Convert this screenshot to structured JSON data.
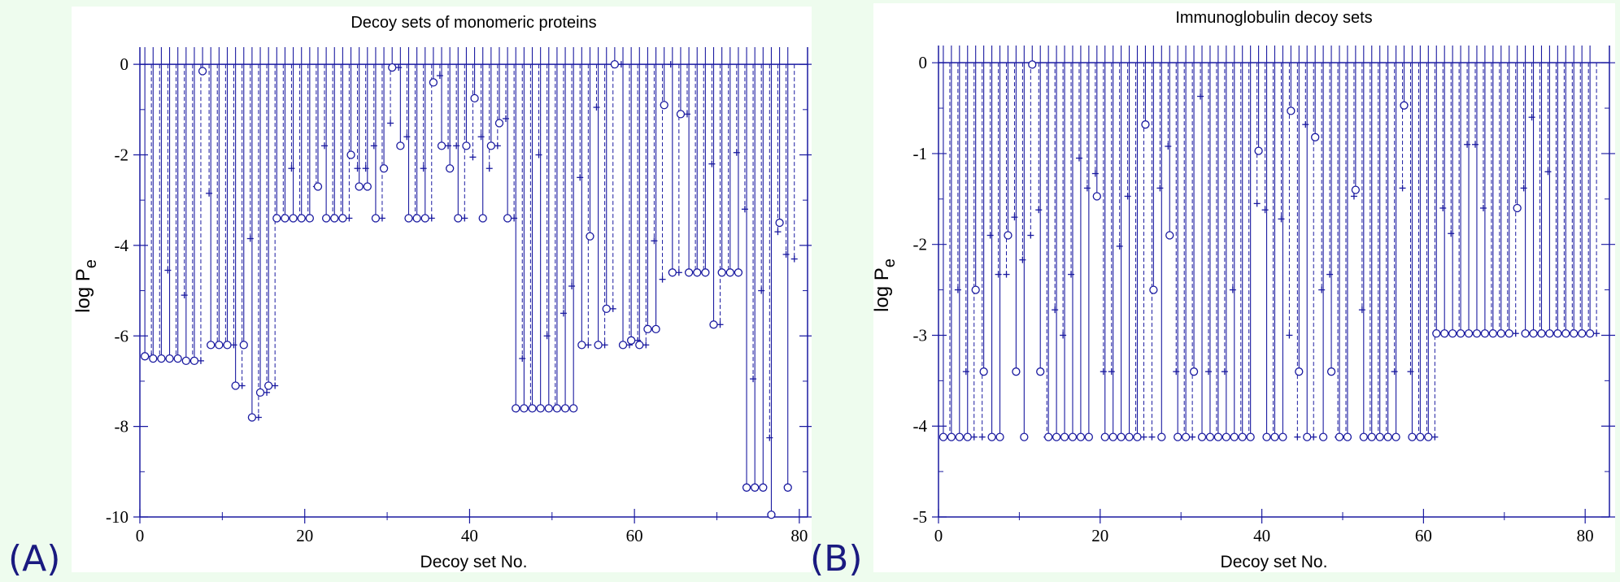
{
  "panels": {
    "a_label": "(A)",
    "b_label": "(B)"
  },
  "colors": {
    "plot": "#1a1aa0",
    "background": "#eefcee",
    "panel": "#ffffff"
  },
  "chart_data": [
    {
      "type": "scatter",
      "title": "Decoy sets of monomeric proteins",
      "xlabel": "Decoy set No.",
      "ylabel": "log P",
      "ylabel_sub": "e",
      "xlim": [
        0,
        81
      ],
      "ylim": [
        -10,
        0.2
      ],
      "xticks": [
        0,
        20,
        40,
        60,
        80
      ],
      "yticks": [
        0,
        -2,
        -4,
        -6,
        -8,
        -10
      ],
      "grid": false,
      "markers": {
        "circle": "o",
        "plus": "+"
      },
      "x": [
        1,
        2,
        3,
        4,
        5,
        6,
        7,
        8,
        9,
        10,
        11,
        12,
        13,
        14,
        15,
        16,
        17,
        18,
        19,
        20,
        21,
        22,
        23,
        24,
        25,
        26,
        27,
        28,
        29,
        30,
        31,
        32,
        33,
        34,
        35,
        36,
        37,
        38,
        39,
        40,
        41,
        42,
        43,
        44,
        45,
        46,
        47,
        48,
        49,
        50,
        51,
        52,
        53,
        54,
        55,
        56,
        57,
        58,
        59,
        60,
        61,
        62,
        63,
        64,
        65,
        66,
        67,
        68,
        69,
        70,
        71,
        72,
        73,
        74,
        75,
        76,
        77,
        78,
        79
      ],
      "series": [
        {
          "marker": "o",
          "values": [
            -6.45,
            -6.5,
            -6.5,
            -6.5,
            -6.5,
            -6.55,
            -6.55,
            -0.15,
            -6.2,
            -6.2,
            -6.2,
            -7.1,
            -6.2,
            -7.8,
            -7.25,
            -7.1,
            -3.4,
            -3.4,
            -3.4,
            -3.4,
            -3.4,
            -2.7,
            -3.4,
            -3.4,
            -3.4,
            -2.0,
            -2.7,
            -2.7,
            -3.4,
            -2.3,
            -0.07,
            -1.8,
            -3.4,
            -3.4,
            -3.4,
            -0.4,
            -1.8,
            -2.3,
            -3.4,
            -1.8,
            -0.75,
            -3.4,
            -1.8,
            -1.3,
            -3.4,
            -7.6,
            -7.6,
            -7.6,
            -7.6,
            -7.6,
            -7.6,
            -7.6,
            -7.6,
            -6.2,
            -3.8,
            -6.2,
            -5.4,
            -0.0,
            -6.2,
            -6.1,
            -6.2,
            -5.85,
            -5.85,
            -0.9,
            -4.6,
            -1.1,
            -4.6,
            -4.6,
            -4.6,
            -5.75,
            -4.6,
            -4.6,
            -4.6,
            -9.35,
            -9.35,
            -9.35,
            -9.95,
            -3.5,
            -9.35
          ]
        },
        {
          "marker": "+",
          "values": [
            -6.45,
            -6.5,
            -4.55,
            -6.5,
            -5.1,
            -6.55,
            -6.55,
            -2.85,
            -6.2,
            -6.2,
            -6.2,
            -7.1,
            -3.85,
            -7.8,
            -7.25,
            -7.1,
            -3.4,
            -2.3,
            -3.4,
            -3.4,
            -2.7,
            -1.8,
            -3.4,
            -3.4,
            -3.4,
            -2.3,
            -2.3,
            -1.8,
            -3.4,
            -1.3,
            -0.07,
            -1.6,
            -3.4,
            -2.3,
            -3.4,
            -0.25,
            -1.8,
            -1.8,
            -3.4,
            -2.05,
            -1.6,
            -2.3,
            -1.8,
            -1.2,
            -3.4,
            -6.5,
            -7.6,
            -2.0,
            -6.0,
            -7.6,
            -5.5,
            -4.9,
            -2.5,
            -6.2,
            -0.95,
            -6.2,
            -5.4,
            -0.0,
            -6.2,
            -6.1,
            -6.2,
            -3.9,
            -4.75,
            -0.0,
            -4.6,
            -1.1,
            -4.6,
            -4.6,
            -2.2,
            -5.75,
            -4.6,
            -1.95,
            -3.2,
            -6.95,
            -5.0,
            -8.25,
            -3.7,
            -4.2,
            -4.3
          ]
        }
      ]
    },
    {
      "type": "scatter",
      "title": "Immunoglobulin decoy sets",
      "xlabel": "Decoy set No.",
      "ylabel": "log P",
      "ylabel_sub": "e",
      "xlim": [
        0,
        83
      ],
      "ylim": [
        -5,
        0.1
      ],
      "xticks": [
        0,
        20,
        40,
        60,
        80
      ],
      "yticks": [
        0,
        -1,
        -2,
        -3,
        -4,
        -5
      ],
      "grid": false,
      "markers": {
        "circle": "o",
        "plus": "+"
      },
      "x": [
        1,
        2,
        3,
        4,
        5,
        6,
        7,
        8,
        9,
        10,
        11,
        12,
        13,
        14,
        15,
        16,
        17,
        18,
        19,
        20,
        21,
        22,
        23,
        24,
        25,
        26,
        27,
        28,
        29,
        30,
        31,
        32,
        33,
        34,
        35,
        36,
        37,
        38,
        39,
        40,
        41,
        42,
        43,
        44,
        45,
        46,
        47,
        48,
        49,
        50,
        51,
        52,
        53,
        54,
        55,
        56,
        57,
        58,
        59,
        60,
        61,
        62,
        63,
        64,
        65,
        66,
        67,
        68,
        69,
        70,
        71,
        72,
        73,
        74,
        75,
        76,
        77,
        78,
        79,
        80,
        81
      ],
      "series": [
        {
          "marker": "o",
          "values": [
            -4.12,
            -4.12,
            -4.12,
            -4.12,
            -2.5,
            -3.4,
            -4.12,
            -4.12,
            -1.9,
            -3.4,
            -4.12,
            -0.02,
            -3.4,
            -4.12,
            -4.12,
            -4.12,
            -4.12,
            -4.12,
            -4.12,
            -1.47,
            -4.12,
            -4.12,
            -4.12,
            -4.12,
            -4.12,
            -0.68,
            -2.5,
            -4.12,
            -1.9,
            -4.12,
            -4.12,
            -3.4,
            -4.12,
            -4.12,
            -4.12,
            -4.12,
            -4.12,
            -4.12,
            -4.12,
            -0.97,
            -4.12,
            -4.12,
            -4.12,
            -0.53,
            -3.4,
            -4.12,
            -0.82,
            -4.12,
            -3.4,
            -4.12,
            -4.12,
            -1.4,
            -4.12,
            -4.12,
            -4.12,
            -4.12,
            -4.12,
            -0.47,
            -4.12,
            -4.12,
            -4.12,
            -2.98,
            -2.98,
            -2.98,
            -2.98,
            -2.98,
            -2.98,
            -2.98,
            -2.98,
            -2.98,
            -2.98,
            -1.6,
            -2.98,
            -2.98,
            -2.98,
            -2.98,
            -2.98,
            -2.98,
            -2.98,
            -2.98,
            -2.98
          ]
        },
        {
          "marker": "+",
          "values": [
            -4.12,
            -2.5,
            -3.4,
            -4.12,
            -4.12,
            -1.9,
            -2.33,
            -2.33,
            -1.7,
            -2.17,
            -1.9,
            -1.62,
            -4.12,
            -2.72,
            -3.0,
            -2.33,
            -1.05,
            -1.38,
            -1.22,
            -3.4,
            -3.4,
            -2.02,
            -1.47,
            -4.12,
            -4.12,
            -4.12,
            -1.38,
            -0.92,
            -3.4,
            -4.12,
            -4.12,
            -0.37,
            -3.4,
            -4.12,
            -3.4,
            -2.5,
            -4.12,
            -4.12,
            -1.55,
            -1.62,
            -4.12,
            -1.72,
            -3.0,
            -4.12,
            -0.68,
            -4.12,
            -2.5,
            -2.33,
            -4.12,
            -4.12,
            -1.47,
            -2.72,
            -4.12,
            -4.12,
            -4.12,
            -3.4,
            -1.38,
            -3.4,
            -4.12,
            -4.12,
            -4.12,
            -1.6,
            -1.88,
            -2.98,
            -0.9,
            -0.9,
            -1.6,
            -2.98,
            -2.98,
            -2.98,
            -2.98,
            -1.38,
            -0.6,
            -2.98,
            -1.2,
            -2.98,
            -2.98,
            -2.98,
            -2.98,
            -2.98,
            -2.98
          ]
        }
      ]
    }
  ]
}
